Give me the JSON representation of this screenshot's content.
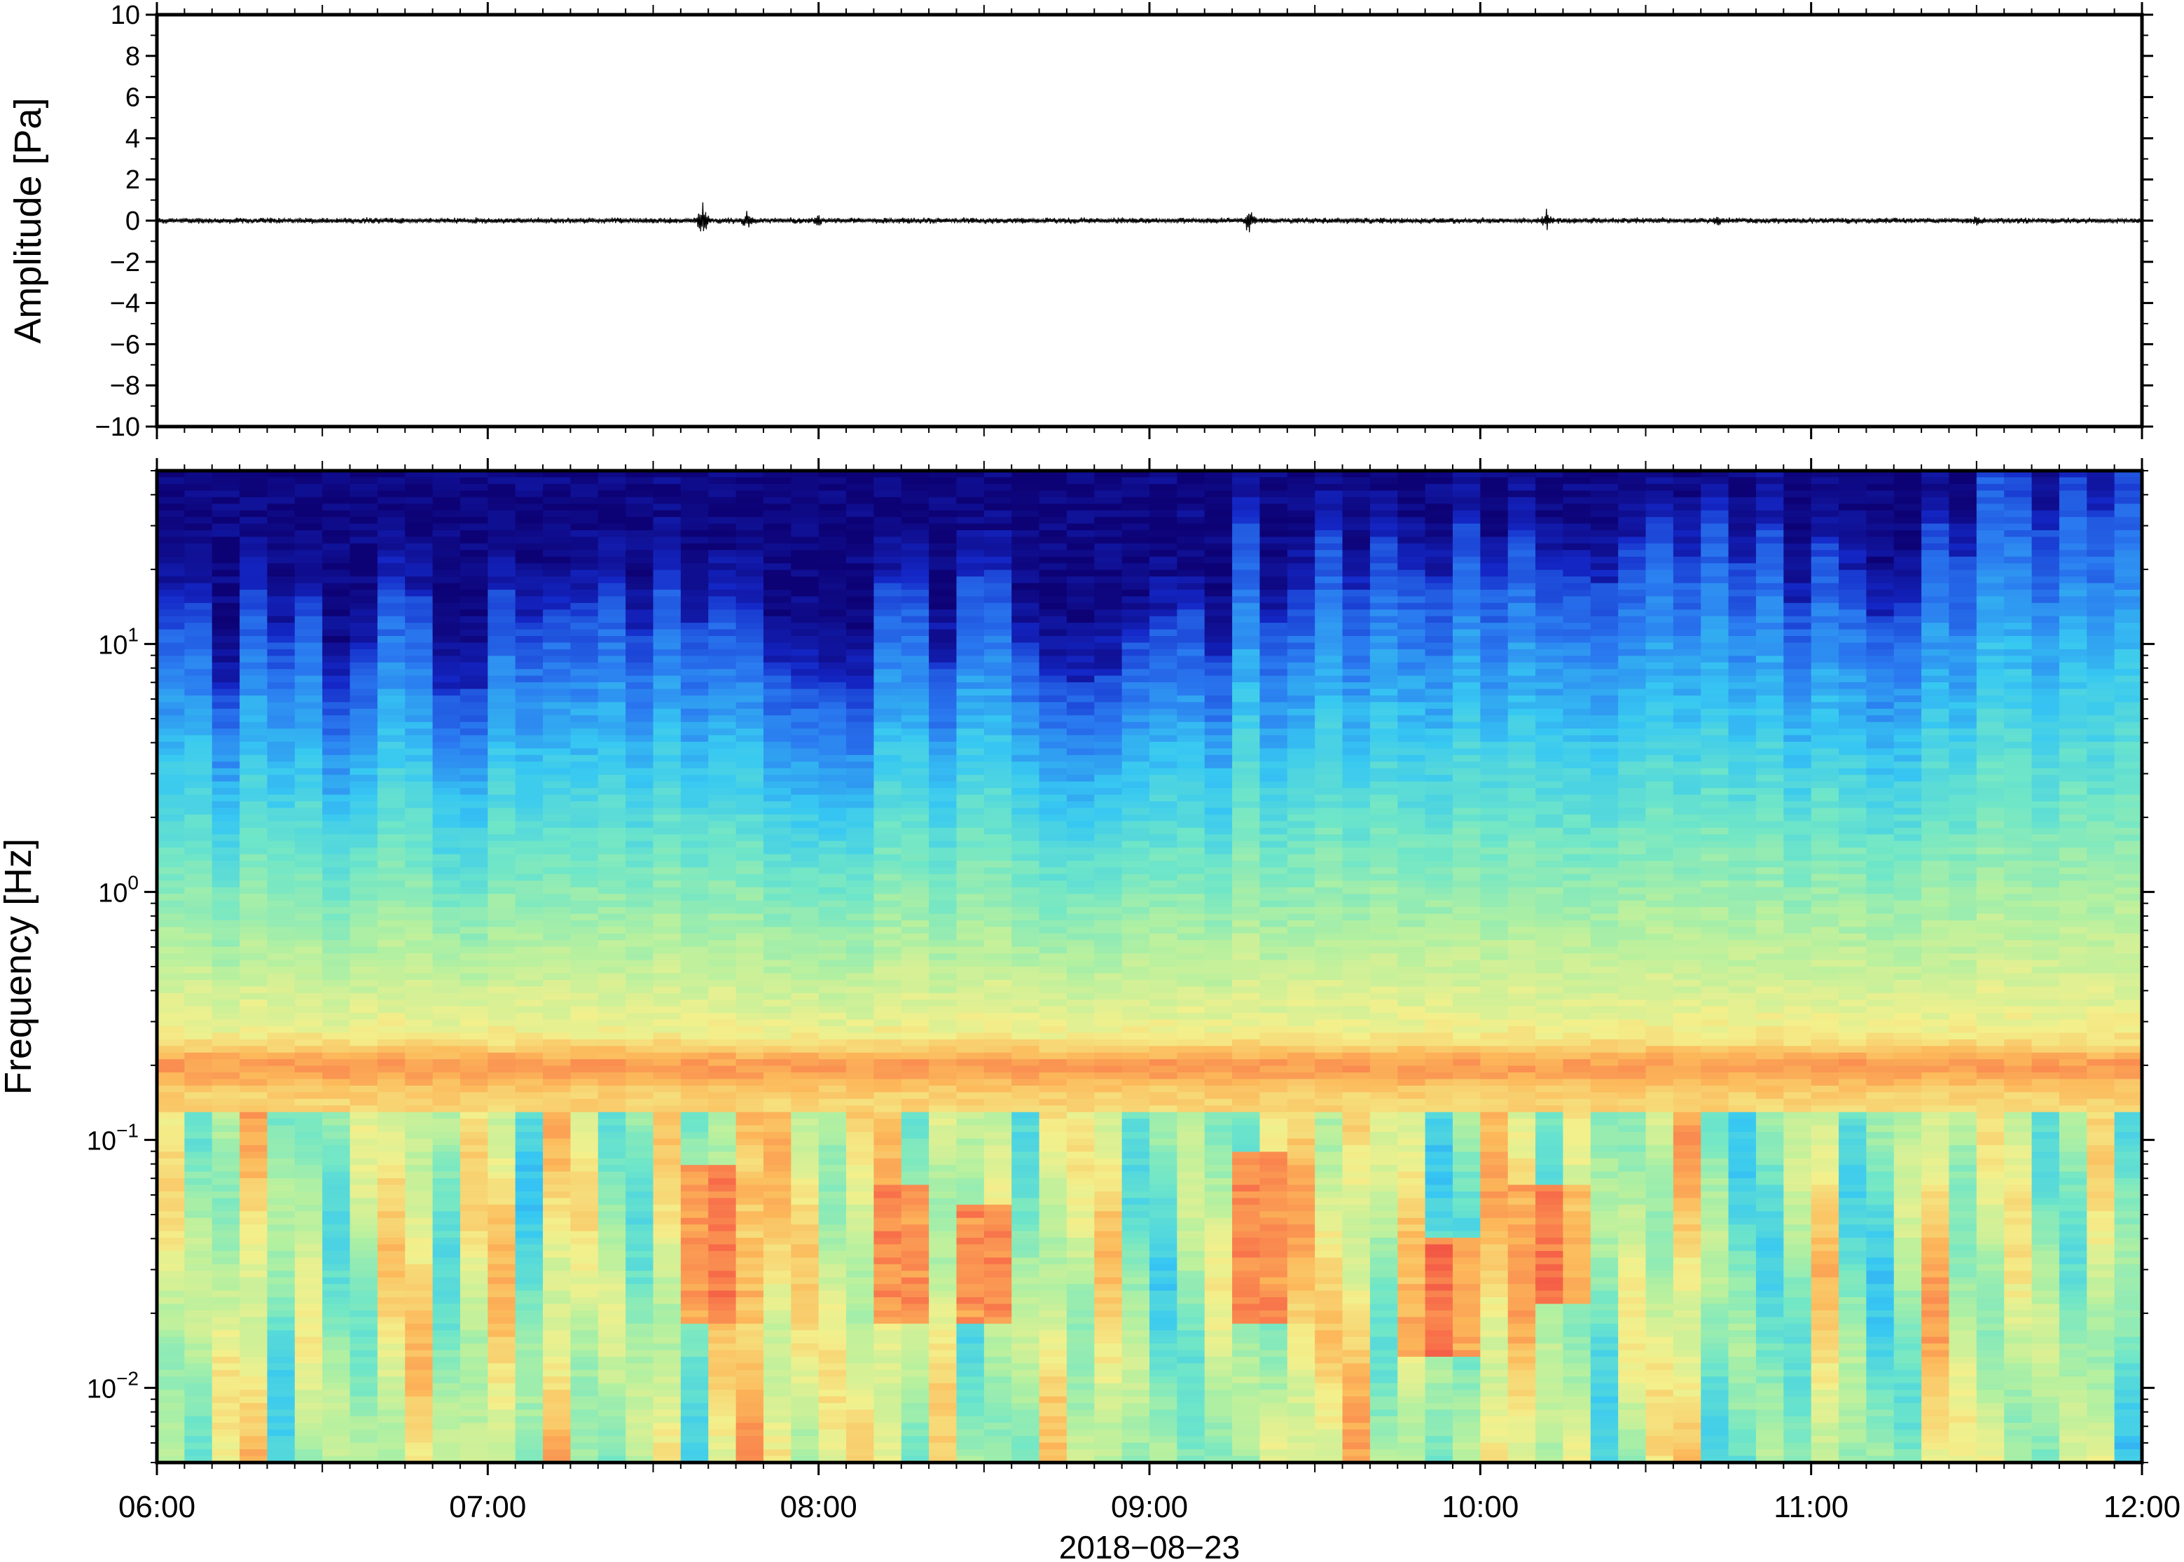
{
  "figure": {
    "date_label": "2018−08−23"
  },
  "chart_data": [
    {
      "type": "line",
      "panel": "waveform",
      "ylabel": "Amplitude [Pa]",
      "ylim": [
        -10,
        10
      ],
      "yticks": [
        {
          "value": 10,
          "label": "10"
        },
        {
          "value": 8,
          "label": "8"
        },
        {
          "value": 6,
          "label": "6"
        },
        {
          "value": 4,
          "label": "4"
        },
        {
          "value": 2,
          "label": "2"
        },
        {
          "value": 0,
          "label": "0"
        },
        {
          "value": -2,
          "label": "−2"
        },
        {
          "value": -4,
          "label": "−4"
        },
        {
          "value": -6,
          "label": "−6"
        },
        {
          "value": -8,
          "label": "−8"
        },
        {
          "value": -10,
          "label": "−10"
        }
      ],
      "xlim": [
        "06:00",
        "12:00"
      ],
      "baseline_noise_amplitude": 0.12,
      "bursts": [
        {
          "time": "07:39",
          "amplitude": 1.0
        },
        {
          "time": "07:47",
          "amplitude": 0.55
        },
        {
          "time": "08:00",
          "amplitude": 0.35
        },
        {
          "time": "09:18",
          "amplitude": 0.75
        },
        {
          "time": "10:12",
          "amplitude": 0.6
        },
        {
          "time": "10:43",
          "amplitude": 0.35
        },
        {
          "time": "11:30",
          "amplitude": 0.3
        }
      ]
    },
    {
      "type": "heatmap",
      "panel": "spectrogram",
      "ylabel": "Frequency [Hz]",
      "xlabel": "2018−08−23",
      "yscale": "log",
      "ylim": [
        0.005,
        50
      ],
      "yticks": [
        {
          "value": 10,
          "base": "10",
          "exp": "1"
        },
        {
          "value": 1,
          "base": "10",
          "exp": "0"
        },
        {
          "value": 0.1,
          "base": "10",
          "exp": "−1"
        },
        {
          "value": 0.01,
          "base": "10",
          "exp": "−2"
        }
      ],
      "xticks": [
        "06:00",
        "07:00",
        "08:00",
        "09:00",
        "10:00",
        "11:00",
        "12:00"
      ],
      "colormap": [
        "#0d0275",
        "#1428c8",
        "#2a79f0",
        "#37c8f2",
        "#6fe6c8",
        "#b4f0a0",
        "#f3f08c",
        "#fcb85a",
        "#f8714a",
        "#e8283c"
      ],
      "time_columns": 72,
      "energetic_events": [
        {
          "time": "07:41",
          "freq_low": 0.02,
          "freq_high": 0.07
        },
        {
          "time": "08:15",
          "freq_low": 0.02,
          "freq_high": 0.06
        },
        {
          "time": "08:30",
          "freq_low": 0.02,
          "freq_high": 0.05
        },
        {
          "time": "09:20",
          "freq_low": 0.02,
          "freq_high": 0.08
        },
        {
          "time": "09:53",
          "freq_low": 0.015,
          "freq_high": 0.035
        },
        {
          "time": "10:12",
          "freq_low": 0.025,
          "freq_high": 0.06
        }
      ],
      "microseism_band_hz": 0.2,
      "high_freq_cutoff_hz": [
        4,
        20
      ]
    }
  ]
}
